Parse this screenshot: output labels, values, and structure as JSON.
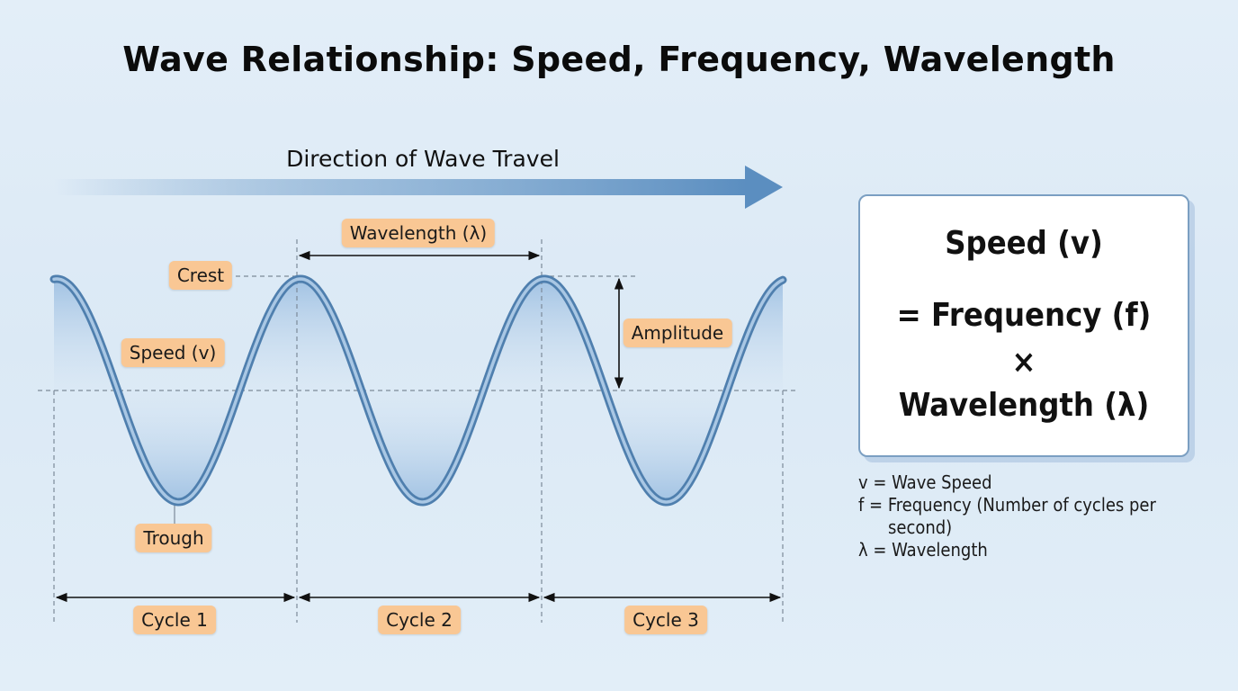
{
  "title": "Wave Relationship: Speed, Frequency, Wavelength",
  "direction_label": "Direction of Wave Travel",
  "labels": {
    "wavelength": "Wavelength (λ)",
    "crest": "Crest",
    "speed": "Speed (v)",
    "amplitude": "Amplitude",
    "trough": "Trough",
    "cycle1": "Cycle 1",
    "cycle2": "Cycle 2",
    "cycle3": "Cycle 3"
  },
  "formula": {
    "line1": "Speed (v)",
    "line2": "= Frequency (f)",
    "line3": "×",
    "line4": "Wavelength (λ)"
  },
  "legend": {
    "v": "v = Wave Speed",
    "f": "f = Frequency (Number of cycles per",
    "f_cont": "second)",
    "lambda": "λ = Wavelength"
  },
  "colors": {
    "wave": "#6f9ac6",
    "wave_dark": "#4f7fae",
    "tag_bg": "#f9c794",
    "arrow": "#5b8ec0"
  }
}
